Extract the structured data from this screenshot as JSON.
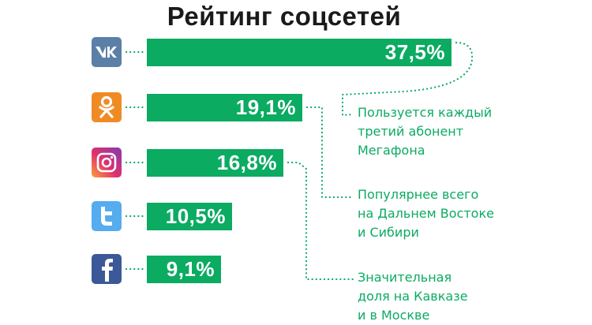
{
  "title": "Рейтинг соцсетей",
  "colors": {
    "bar": "#0bab62",
    "callout_text": "#0bab62",
    "dots": "#0bab62",
    "title": "#1a1a1a"
  },
  "chart_data": {
    "type": "bar",
    "orientation": "horizontal",
    "title": "Рейтинг соцсетей",
    "unit": "%",
    "categories": [
      "vk-logo",
      "odnoklassniki-logo",
      "instagram-logo",
      "twitter-logo",
      "facebook-logo"
    ],
    "values": [
      37.5,
      19.1,
      16.8,
      10.5,
      9.1
    ],
    "value_labels": [
      "37,5%",
      "19,1%",
      "16,8%",
      "10,5%",
      "9,1%"
    ],
    "annotations": [
      "Пользуется каждый третий абонент Мегафона",
      "Популярнее всего на Дальнем Востоке и Сибири",
      "Значительная доля на Кавказе и в Москве"
    ]
  },
  "callouts": [
    [
      "Пользуется каждый",
      "третий абонент",
      "Мегафона"
    ],
    [
      "Популярнее всего",
      "на Дальнем Востоке",
      "и Сибири"
    ],
    [
      "Значительная",
      "доля на Кавказе",
      "и в Москве"
    ]
  ],
  "logos": [
    {
      "name": "vk-icon",
      "color": "#5b7fa6"
    },
    {
      "name": "odnoklassniki-icon",
      "color": "#f08a24"
    },
    {
      "name": "instagram-icon",
      "color": "#c13584"
    },
    {
      "name": "twitter-icon",
      "color": "#55acee"
    },
    {
      "name": "facebook-icon",
      "color": "#3b5998"
    }
  ]
}
